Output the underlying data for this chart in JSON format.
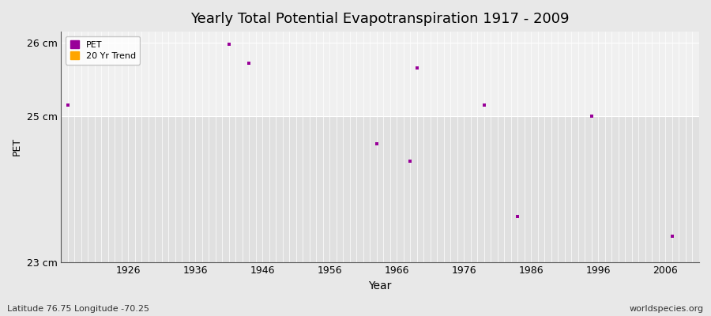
{
  "title": "Yearly Total Potential Evapotranspiration 1917 - 2009",
  "xlabel": "Year",
  "ylabel": "PET",
  "subtitle_left": "Latitude 76.75 Longitude -70.25",
  "subtitle_right": "worldspecies.org",
  "xlim": [
    1916,
    2011
  ],
  "ylim": [
    23.0,
    26.15
  ],
  "yticks": [
    23,
    25,
    26
  ],
  "ytick_labels": [
    "23 cm",
    "25 cm",
    "26 cm"
  ],
  "xticks": [
    1926,
    1936,
    1946,
    1956,
    1966,
    1976,
    1986,
    1996,
    2006
  ],
  "data_years": [
    1917,
    1941,
    1944,
    1963,
    1968,
    1969,
    1979,
    1984,
    1995,
    2007
  ],
  "data_values": [
    25.15,
    25.98,
    25.72,
    24.62,
    24.38,
    25.65,
    25.15,
    23.62,
    25.0,
    23.35
  ],
  "pet_color": "#990099",
  "trend_color": "#FFA500",
  "bg_color": "#E8E8E8",
  "plot_bg_upper_color": "#F0F0F0",
  "plot_bg_lower_color": "#E0E0E0",
  "grid_color": "#FFFFFF",
  "legend_labels": [
    "PET",
    "20 Yr Trend"
  ],
  "title_fontsize": 13,
  "axis_fontsize": 9,
  "marker_size": 8,
  "figsize": [
    9.0,
    4.0
  ],
  "dpi": 100
}
